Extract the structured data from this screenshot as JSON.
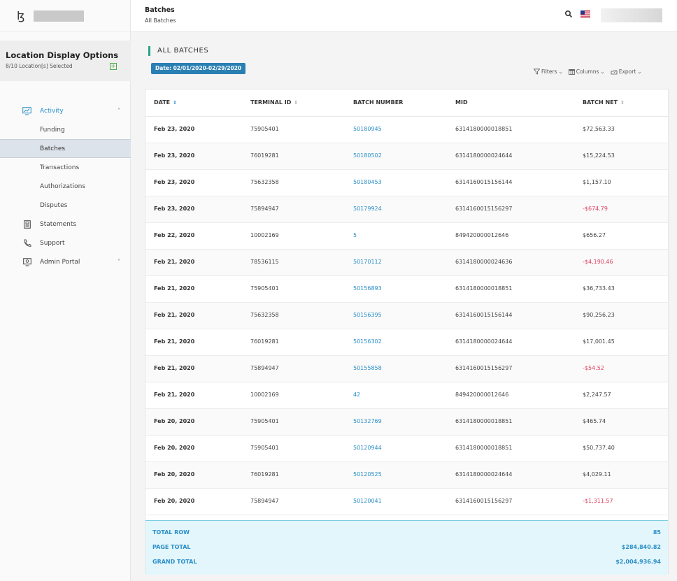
{
  "header": {
    "title": "Batches",
    "subtitle": "All Batches"
  },
  "location": {
    "title": "Location Display Options",
    "selected": "8/10 Location[s] Selected"
  },
  "sidebar": {
    "items": [
      {
        "label": "Activity",
        "icon": "chart-monitor-icon",
        "type": "parent",
        "chevron": "^"
      },
      {
        "label": "Funding",
        "type": "child"
      },
      {
        "label": "Batches",
        "type": "child",
        "active": true
      },
      {
        "label": "Transactions",
        "type": "child"
      },
      {
        "label": "Authorizations",
        "type": "child"
      },
      {
        "label": "Disputes",
        "type": "child"
      },
      {
        "label": "Statements",
        "icon": "document-icon",
        "type": "section"
      },
      {
        "label": "Support",
        "icon": "phone-icon",
        "type": "section"
      },
      {
        "label": "Admin Portal",
        "icon": "monitor-icon",
        "type": "section",
        "chevron": "v"
      }
    ]
  },
  "main": {
    "heading": "ALL BATCHES",
    "date_filter": "Date: 02/01/2020-02/29/2020",
    "toolbar": {
      "filters": "Filters",
      "columns": "Columns",
      "export": "Export"
    }
  },
  "table": {
    "columns": [
      "DATE",
      "TERMINAL ID",
      "BATCH NUMBER",
      "MID",
      "BATCH NET"
    ],
    "rows": [
      [
        "Feb 23, 2020",
        "75905401",
        "50180945",
        "6314180000018851",
        "$72,563.33"
      ],
      [
        "Feb 23, 2020",
        "76019281",
        "50180502",
        "6314180000024644",
        "$15,224.53"
      ],
      [
        "Feb 23, 2020",
        "75632358",
        "50180453",
        "6314160015156144",
        "$1,157.10"
      ],
      [
        "Feb 23, 2020",
        "75894947",
        "50179924",
        "6314160015156297",
        "-$674.79"
      ],
      [
        "Feb 22, 2020",
        "10002169",
        "5",
        "849420000012646",
        "$656.27"
      ],
      [
        "Feb 21, 2020",
        "78536115",
        "50170112",
        "6314180000024636",
        "-$4,190.46"
      ],
      [
        "Feb 21, 2020",
        "75905401",
        "50156893",
        "6314180000018851",
        "$36,733.43"
      ],
      [
        "Feb 21, 2020",
        "75632358",
        "50156395",
        "6314160015156144",
        "$90,256.23"
      ],
      [
        "Feb 21, 2020",
        "76019281",
        "50156302",
        "6314180000024644",
        "$17,001.45"
      ],
      [
        "Feb 21, 2020",
        "75894947",
        "50155858",
        "6314160015156297",
        "-$54.52"
      ],
      [
        "Feb 21, 2020",
        "10002169",
        "42",
        "849420000012646",
        "$2,247.57"
      ],
      [
        "Feb 20, 2020",
        "75905401",
        "50132769",
        "6314180000018851",
        "$465.74"
      ],
      [
        "Feb 20, 2020",
        "75905401",
        "50120944",
        "6314180000018851",
        "$50,737.40"
      ],
      [
        "Feb 20, 2020",
        "76019281",
        "50120525",
        "6314180000024644",
        "$4,029.11"
      ],
      [
        "Feb 20, 2020",
        "75894947",
        "50120041",
        "6314160015156297",
        "-$1,311.57"
      ]
    ],
    "totals": [
      {
        "label": "TOTAL ROW",
        "value": "85"
      },
      {
        "label": "PAGE TOTAL",
        "value": "$284,840.82"
      },
      {
        "label": "GRAND TOTAL",
        "value": "$2,004,936.94"
      }
    ]
  },
  "colors": {
    "accent": "#2b8fc9",
    "negative": "#e0415f",
    "heading_bar": "#27a58a",
    "chip": "#2a7fb3",
    "footer_bg": "#e3f6fb"
  }
}
